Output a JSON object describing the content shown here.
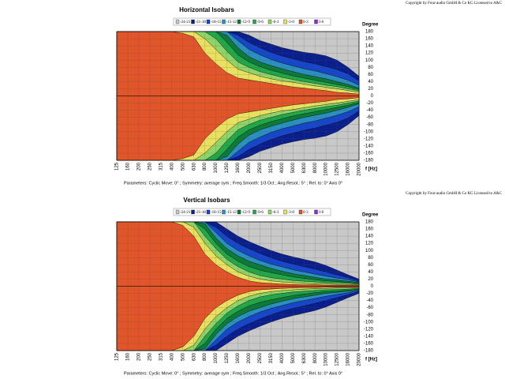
{
  "chart_data": [
    {
      "type": "isobar",
      "title": "Horizontal Isobars",
      "copyright": "Copyright by Four-audio GmbH & Co KG   Licensed to A&C",
      "parameters": "Parameters:    Cyclic Move:  0°   ;   Symmetry: average sym   ;   Freq.Smooth: 1/3  Oct   ;   Ang.Resol.:  5°   ;   Rel. to: 0° Axis    0°",
      "y_label": "Degree",
      "x_label": "f [Hz]",
      "grid": true,
      "categories": [
        "125",
        "160",
        "200",
        "250",
        "315",
        "400",
        "500",
        "630",
        "800",
        "1000",
        "1250",
        "1600",
        "2000",
        "2500",
        "3150",
        "4000",
        "5000",
        "6300",
        "8000",
        "10000",
        "12500",
        "16000",
        "20000"
      ],
      "ylim": [
        -180,
        180
      ],
      "yticks": [
        180,
        160,
        140,
        120,
        100,
        80,
        60,
        40,
        20,
        0,
        -20,
        -40,
        -60,
        -80,
        -100,
        -120,
        -140,
        -160,
        -180
      ],
      "series": [
        {
          "name": "-24-21",
          "color": "#c8c8c8",
          "values": [
            180,
            180,
            180,
            180,
            180,
            180,
            180,
            180,
            180,
            180,
            180,
            180,
            180,
            180,
            180,
            180,
            180,
            180,
            180,
            180,
            180,
            180,
            180
          ]
        },
        {
          "name": "-21-18",
          "color": "#0b1f8c",
          "values": [
            180,
            180,
            180,
            180,
            180,
            180,
            180,
            180,
            180,
            180,
            180,
            180,
            170,
            155,
            145,
            135,
            128,
            122,
            118,
            112,
            100,
            80,
            55
          ]
        },
        {
          "name": "-18-15",
          "color": "#1746c8",
          "values": [
            180,
            180,
            180,
            180,
            180,
            180,
            180,
            180,
            180,
            180,
            180,
            170,
            150,
            135,
            122,
            112,
            104,
            96,
            90,
            82,
            74,
            62,
            42
          ]
        },
        {
          "name": "-15-12",
          "color": "#2b8fc0",
          "values": [
            180,
            180,
            180,
            180,
            180,
            180,
            180,
            180,
            180,
            180,
            180,
            155,
            130,
            115,
            102,
            92,
            84,
            76,
            70,
            62,
            54,
            44,
            30
          ]
        },
        {
          "name": "-12-9",
          "color": "#0d7a3a",
          "values": [
            180,
            180,
            180,
            180,
            180,
            180,
            180,
            180,
            180,
            180,
            170,
            135,
            110,
            95,
            85,
            76,
            68,
            60,
            54,
            48,
            40,
            32,
            22
          ]
        },
        {
          "name": "-9-6",
          "color": "#22a84a",
          "values": [
            180,
            180,
            180,
            180,
            180,
            180,
            180,
            180,
            180,
            180,
            150,
            115,
            95,
            82,
            72,
            64,
            56,
            50,
            44,
            38,
            32,
            26,
            18
          ]
        },
        {
          "name": "-6-3",
          "color": "#8fd46a",
          "values": [
            180,
            180,
            180,
            180,
            180,
            180,
            180,
            180,
            180,
            160,
            125,
            95,
            80,
            68,
            60,
            52,
            46,
            40,
            35,
            30,
            26,
            20,
            14
          ]
        },
        {
          "name": "-3-0",
          "color": "#e8e060",
          "values": [
            180,
            180,
            180,
            180,
            180,
            180,
            180,
            180,
            160,
            130,
            100,
            75,
            65,
            55,
            48,
            42,
            38,
            33,
            28,
            24,
            20,
            15,
            10
          ]
        },
        {
          "name": "0-3",
          "color": "#e0552a",
          "values": [
            180,
            180,
            180,
            180,
            180,
            180,
            175,
            165,
            120,
            90,
            65,
            50,
            45,
            40,
            35,
            30,
            25,
            22,
            18,
            15,
            10,
            8,
            5
          ]
        },
        {
          "name": "3-6",
          "color": "#8a2be2",
          "values": [
            0,
            0,
            0,
            0,
            0,
            0,
            0,
            0,
            0,
            0,
            0,
            0,
            0,
            0,
            0,
            0,
            0,
            0,
            0,
            0,
            0,
            0,
            0
          ]
        }
      ]
    },
    {
      "type": "isobar",
      "title": "Vertical Isobars",
      "copyright": "Copyright by Four-audio GmbH & Co KG   Licensed to A&C",
      "parameters": "Parameters:    Cyclic Move:  0°   ;   Symmetry: average sym   ;   Freq.Smooth: 1/3  Oct   ;   Ang.Resol.:  5°   ;   Rel. to: 0° Axis    0°",
      "y_label": "Degree",
      "x_label": "f [Hz]",
      "grid": true,
      "categories": [
        "125",
        "160",
        "200",
        "250",
        "315",
        "400",
        "500",
        "630",
        "800",
        "1000",
        "1250",
        "1600",
        "2000",
        "2500",
        "3150",
        "4000",
        "5000",
        "6300",
        "8000",
        "10000",
        "12500",
        "16000",
        "20000"
      ],
      "ylim": [
        -180,
        180
      ],
      "yticks": [
        180,
        160,
        140,
        120,
        100,
        80,
        60,
        40,
        20,
        0,
        -20,
        -40,
        -60,
        -80,
        -100,
        -120,
        -140,
        -160,
        -180
      ],
      "series": [
        {
          "name": "-24-21",
          "color": "#c8c8c8",
          "values": [
            180,
            180,
            180,
            180,
            180,
            180,
            180,
            180,
            180,
            180,
            180,
            180,
            180,
            180,
            180,
            180,
            180,
            180,
            180,
            180,
            180,
            180,
            180
          ]
        },
        {
          "name": "-21-18",
          "color": "#0b1f8c",
          "values": [
            180,
            180,
            180,
            180,
            180,
            180,
            180,
            180,
            180,
            180,
            160,
            140,
            125,
            112,
            100,
            90,
            82,
            75,
            68,
            58,
            45,
            32,
            20
          ]
        },
        {
          "name": "-18-15",
          "color": "#1746c8",
          "values": [
            180,
            180,
            180,
            180,
            180,
            180,
            180,
            180,
            180,
            165,
            140,
            120,
            105,
            92,
            80,
            70,
            62,
            55,
            48,
            40,
            32,
            24,
            15
          ]
        },
        {
          "name": "-15-12",
          "color": "#2b8fc0",
          "values": [
            180,
            180,
            180,
            180,
            180,
            180,
            180,
            180,
            180,
            150,
            120,
            100,
            85,
            72,
            62,
            54,
            46,
            40,
            34,
            28,
            23,
            18,
            12
          ]
        },
        {
          "name": "-12-9",
          "color": "#0d7a3a",
          "values": [
            180,
            180,
            180,
            180,
            180,
            180,
            180,
            180,
            175,
            135,
            105,
            85,
            70,
            60,
            50,
            42,
            35,
            30,
            25,
            20,
            17,
            14,
            10
          ]
        },
        {
          "name": "-9-6",
          "color": "#22a84a",
          "values": [
            180,
            180,
            180,
            180,
            180,
            180,
            180,
            180,
            160,
            120,
            90,
            70,
            55,
            45,
            38,
            32,
            26,
            22,
            18,
            15,
            13,
            11,
            8
          ]
        },
        {
          "name": "-6-3",
          "color": "#8fd46a",
          "values": [
            180,
            180,
            180,
            180,
            180,
            180,
            180,
            180,
            140,
            105,
            75,
            55,
            40,
            30,
            24,
            20,
            16,
            14,
            12,
            10,
            9,
            8,
            6
          ]
        },
        {
          "name": "-3-0",
          "color": "#e8e060",
          "values": [
            180,
            180,
            180,
            180,
            180,
            180,
            180,
            165,
            120,
            85,
            60,
            40,
            28,
            20,
            15,
            12,
            10,
            8,
            7,
            6,
            5,
            5,
            4
          ]
        },
        {
          "name": "0-3",
          "color": "#e0552a",
          "values": [
            180,
            180,
            180,
            180,
            180,
            180,
            170,
            140,
            90,
            60,
            40,
            25,
            15,
            10,
            8,
            6,
            5,
            4,
            4,
            3,
            3,
            3,
            3
          ]
        },
        {
          "name": "3-6",
          "color": "#8a2be2",
          "values": [
            0,
            0,
            0,
            0,
            0,
            0,
            0,
            0,
            0,
            0,
            0,
            0,
            0,
            0,
            0,
            0,
            0,
            0,
            0,
            0,
            0,
            0,
            0
          ]
        }
      ]
    }
  ]
}
